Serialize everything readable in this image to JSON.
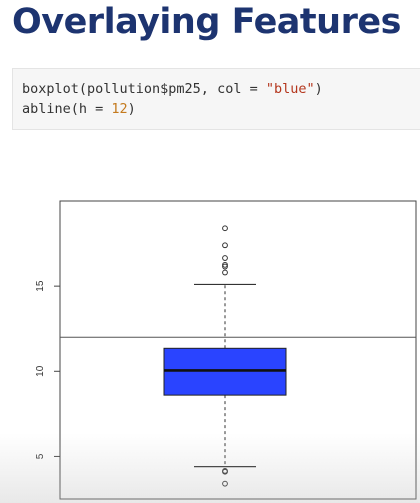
{
  "slide": {
    "title": "Overlaying Features"
  },
  "code": {
    "line1_pre": "boxplot(pollution$pm25, col = ",
    "line1_str": "\"blue\"",
    "line1_post": ")",
    "line2_pre": "abline(h = ",
    "line2_num": "12",
    "line2_post": ")"
  },
  "colors": {
    "title": "#1d3470",
    "box_fill": "#2a44ff",
    "string_token": "#b4361d",
    "number_token": "#c47a1e"
  },
  "chart_data": {
    "type": "boxplot",
    "title": "",
    "xlabel": "",
    "ylabel": "",
    "ylim": [
      2.5,
      20
    ],
    "y_ticks": [
      5,
      10,
      15
    ],
    "box": {
      "q1": 8.6,
      "median": 10.05,
      "q3": 11.35,
      "whisker_low": 4.4,
      "whisker_high": 15.1,
      "color": "#2a44ff"
    },
    "outliers_high": [
      15.8,
      16.15,
      16.25,
      16.65,
      17.4,
      18.4
    ],
    "outliers_low": [
      4.1,
      4.15,
      3.4
    ],
    "hline": 12,
    "grid": false
  }
}
